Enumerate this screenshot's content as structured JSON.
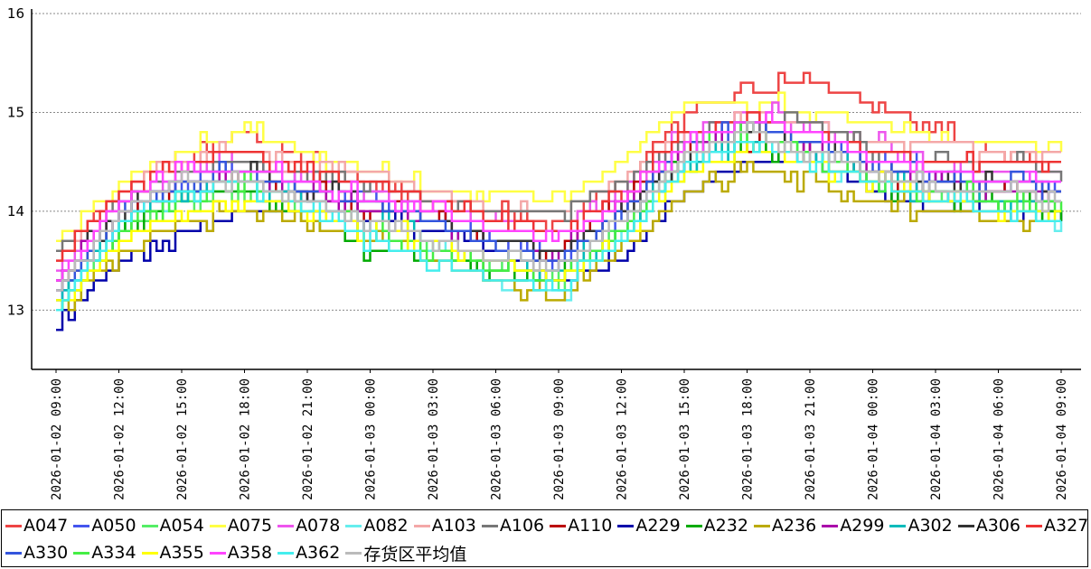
{
  "chart_data": {
    "type": "line",
    "title": "",
    "xlabel": "",
    "ylabel": "",
    "ylim": [
      12.4,
      16
    ],
    "y_ticks": [
      "13",
      "14",
      "15",
      "16"
    ],
    "x_ticks": [
      "2026-01-02 09:00",
      "2026-01-02 12:00",
      "2026-01-02 15:00",
      "2026-01-02 18:00",
      "2026-01-02 21:00",
      "2026-01-03 00:00",
      "2026-01-03 03:00",
      "2026-01-03 06:00",
      "2026-01-03 09:00",
      "2026-01-03 12:00",
      "2026-01-03 15:00",
      "2026-01-03 18:00",
      "2026-01-03 21:00",
      "2026-01-04 00:00",
      "2026-01-04 03:00",
      "2026-01-04 06:00",
      "2026-01-04 09:00"
    ],
    "x_range": [
      "2026-01-02 09:00",
      "2026-01-04 09:00"
    ],
    "grid": "horizontal-dotted",
    "legend_position": "bottom",
    "x_hours": [
      0,
      2,
      4,
      6,
      8,
      10,
      12,
      14,
      16,
      18,
      20,
      22,
      24,
      26,
      28,
      30,
      32,
      34,
      36,
      38,
      40,
      42,
      44,
      46,
      48
    ],
    "series": [
      {
        "name": "A047",
        "color": "#ee4444",
        "values": [
          13.6,
          14.2,
          14.6,
          14.8,
          14.5,
          14.3,
          14.1,
          14.0,
          13.9,
          14.3,
          15.0,
          15.2,
          15.3,
          15.1,
          14.8,
          14.6,
          14.5,
          14.5
        ]
      },
      {
        "name": "A050",
        "color": "#4455ee",
        "values": [
          13.1,
          13.9,
          14.3,
          14.5,
          14.3,
          14.2,
          14.0,
          13.7,
          13.5,
          13.9,
          14.6,
          14.9,
          14.8,
          14.6,
          14.4,
          14.3,
          14.3,
          14.2
        ]
      },
      {
        "name": "A054",
        "color": "#55ee66",
        "values": [
          13.0,
          13.8,
          14.1,
          14.2,
          14.0,
          13.9,
          13.7,
          13.4,
          13.3,
          13.8,
          14.5,
          14.8,
          14.6,
          14.3,
          14.1,
          14.1,
          14.0,
          14.0
        ]
      },
      {
        "name": "A075",
        "color": "#ffff44",
        "values": [
          13.7,
          14.3,
          14.6,
          14.8,
          14.6,
          14.4,
          14.2,
          14.2,
          14.1,
          14.5,
          15.1,
          15.1,
          15.0,
          14.9,
          14.7,
          14.7,
          14.6,
          14.6
        ]
      },
      {
        "name": "A078",
        "color": "#ee55ee",
        "values": [
          13.4,
          14.1,
          14.4,
          14.5,
          14.3,
          14.2,
          14.0,
          13.9,
          13.8,
          14.2,
          14.8,
          15.0,
          14.9,
          14.7,
          14.5,
          14.4,
          14.4,
          14.4
        ]
      },
      {
        "name": "A082",
        "color": "#66eeee",
        "values": [
          13.0,
          13.9,
          14.2,
          14.3,
          14.1,
          13.8,
          13.6,
          13.3,
          13.2,
          13.7,
          14.5,
          14.7,
          14.5,
          14.3,
          14.1,
          14.0,
          13.9,
          13.9
        ]
      },
      {
        "name": "A103",
        "color": "#f4a8a8",
        "values": [
          13.5,
          14.2,
          14.5,
          14.6,
          14.5,
          14.4,
          14.2,
          14.0,
          14.0,
          14.3,
          14.8,
          14.9,
          14.9,
          14.7,
          14.7,
          14.6,
          14.6,
          14.6
        ]
      },
      {
        "name": "A106",
        "color": "#777777",
        "values": [
          13.6,
          14.1,
          14.4,
          14.5,
          14.4,
          14.3,
          14.1,
          14.0,
          14.0,
          14.3,
          14.7,
          14.9,
          14.9,
          14.6,
          14.5,
          14.5,
          14.4,
          14.4
        ]
      },
      {
        "name": "A110",
        "color": "#bb0000",
        "values": [
          13.2,
          14.0,
          14.2,
          14.3,
          14.2,
          14.0,
          13.9,
          13.7,
          13.6,
          14.1,
          14.6,
          14.7,
          14.6,
          14.4,
          14.2,
          14.2,
          14.1,
          14.1
        ]
      },
      {
        "name": "A229",
        "color": "#0000aa",
        "values": [
          12.9,
          13.5,
          13.8,
          14.0,
          14.0,
          13.9,
          13.8,
          13.6,
          13.3,
          13.5,
          14.2,
          14.5,
          14.5,
          14.2,
          14.0,
          14.0,
          14.0,
          14.0
        ]
      },
      {
        "name": "A232",
        "color": "#00aa00",
        "values": [
          13.0,
          13.8,
          14.2,
          14.2,
          13.9,
          13.6,
          13.5,
          13.4,
          13.3,
          13.8,
          14.5,
          14.7,
          14.5,
          14.3,
          14.1,
          14.1,
          14.0,
          14.0
        ]
      },
      {
        "name": "A236",
        "color": "#bbaa00",
        "values": [
          13.0,
          13.6,
          13.9,
          14.0,
          13.9,
          13.7,
          13.5,
          13.3,
          13.1,
          13.6,
          14.2,
          14.4,
          14.3,
          14.1,
          14.0,
          13.9,
          13.9,
          13.8
        ]
      },
      {
        "name": "A299",
        "color": "#aa00aa",
        "values": [
          13.3,
          14.0,
          14.3,
          14.3,
          14.2,
          14.0,
          13.9,
          13.7,
          13.6,
          14.0,
          14.6,
          14.8,
          14.7,
          14.4,
          14.3,
          14.2,
          14.2,
          14.2
        ]
      },
      {
        "name": "A302",
        "color": "#00bbbb",
        "values": [
          13.1,
          13.9,
          14.2,
          14.3,
          14.1,
          13.9,
          13.7,
          13.5,
          13.4,
          13.8,
          14.5,
          14.7,
          14.6,
          14.3,
          14.2,
          14.1,
          14.1,
          14.1
        ]
      },
      {
        "name": "A306",
        "color": "#333333",
        "values": [
          13.3,
          14.0,
          14.3,
          14.4,
          14.2,
          14.1,
          13.9,
          13.7,
          13.6,
          14.0,
          14.6,
          14.8,
          14.7,
          14.5,
          14.3,
          14.3,
          14.2,
          14.2
        ]
      },
      {
        "name": "A327",
        "color": "#ee3333",
        "values": [
          13.5,
          14.2,
          14.5,
          14.6,
          14.4,
          14.3,
          14.1,
          13.9,
          13.8,
          14.2,
          14.8,
          14.9,
          14.8,
          14.6,
          14.5,
          14.5,
          14.5,
          14.5
        ]
      },
      {
        "name": "A330",
        "color": "#3355dd",
        "values": [
          13.2,
          14.0,
          14.3,
          14.4,
          14.2,
          14.1,
          13.9,
          13.6,
          13.5,
          14.0,
          14.7,
          14.9,
          14.7,
          14.5,
          14.3,
          14.3,
          14.2,
          14.2
        ]
      },
      {
        "name": "A334",
        "color": "#44ee44",
        "values": [
          13.0,
          13.8,
          14.2,
          14.3,
          14.0,
          13.8,
          13.6,
          13.4,
          13.3,
          13.8,
          14.6,
          14.8,
          14.6,
          14.3,
          14.2,
          14.1,
          14.1,
          14.0
        ]
      },
      {
        "name": "A355",
        "color": "#ffff00",
        "values": [
          13.0,
          13.7,
          14.0,
          14.1,
          14.0,
          13.8,
          13.7,
          13.5,
          13.3,
          13.7,
          14.4,
          14.6,
          14.5,
          14.3,
          14.1,
          14.0,
          14.0,
          14.0
        ]
      },
      {
        "name": "A358",
        "color": "#ff44ff",
        "values": [
          13.3,
          14.1,
          14.4,
          14.4,
          14.3,
          14.1,
          14.0,
          13.8,
          13.7,
          14.1,
          14.7,
          14.9,
          14.8,
          14.5,
          14.4,
          14.3,
          14.3,
          14.3
        ]
      },
      {
        "name": "A362",
        "color": "#44eeee",
        "values": [
          13.0,
          13.9,
          14.2,
          14.3,
          14.0,
          13.7,
          13.5,
          13.3,
          13.2,
          13.7,
          14.5,
          14.7,
          14.5,
          14.3,
          14.1,
          14.0,
          13.9,
          13.9
        ]
      },
      {
        "name": "存货区平均值",
        "color": "#bbbbbb",
        "values": [
          13.2,
          14.0,
          14.3,
          14.3,
          14.1,
          13.9,
          13.7,
          13.5,
          13.4,
          13.9,
          14.6,
          14.8,
          14.6,
          14.4,
          14.2,
          14.2,
          14.1,
          14.1
        ]
      }
    ],
    "series_x_hours": [
      0,
      3,
      6,
      9,
      12,
      15,
      18,
      21,
      24,
      27,
      30,
      33,
      36,
      39,
      42,
      45,
      48,
      48
    ]
  }
}
